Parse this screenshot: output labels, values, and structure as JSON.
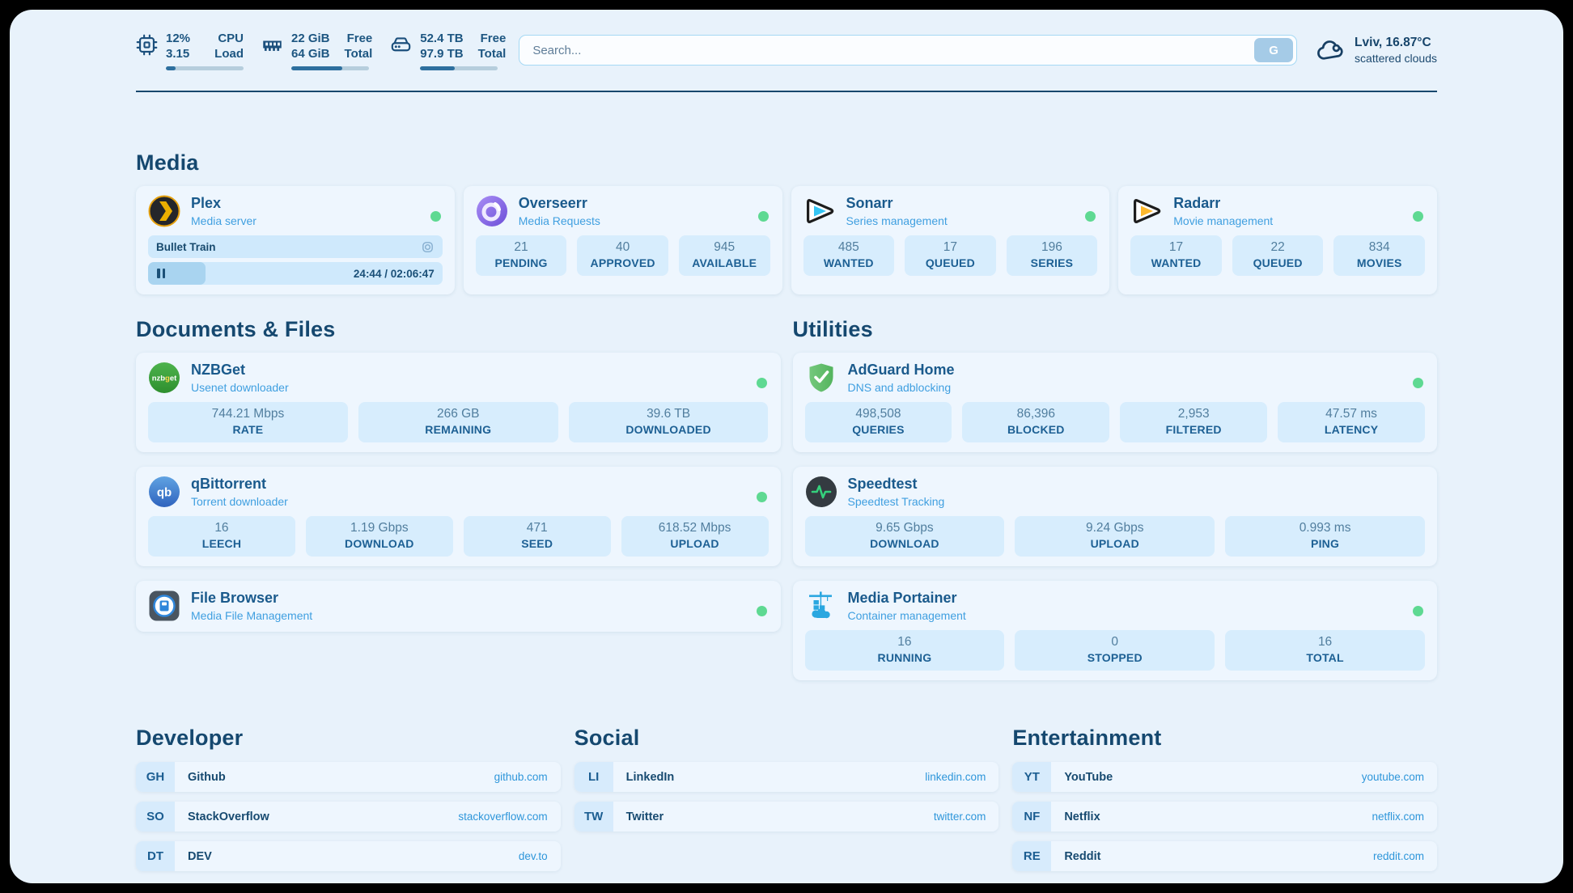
{
  "colors": {
    "status_online": "#5ed992",
    "accent": "#2e96da"
  },
  "header": {
    "hardware": [
      {
        "icon": "cpu-icon",
        "values": [
          "12%",
          "3.15"
        ],
        "labels": [
          "CPU",
          "Load"
        ],
        "progress_pct": 13
      },
      {
        "icon": "ram-icon",
        "values": [
          "22 GiB",
          "64 GiB"
        ],
        "labels": [
          "Free",
          "Total"
        ],
        "progress_pct": 66
      },
      {
        "icon": "disk-icon",
        "values": [
          "52.4 TB",
          "97.9 TB"
        ],
        "labels": [
          "Free",
          "Total"
        ],
        "progress_pct": 45
      }
    ],
    "search": {
      "placeholder": "Search...",
      "provider_label": "G"
    },
    "weather": {
      "icon": "cloud-icon",
      "location_temp": "Lviv, 16.87°C",
      "condition": "scattered clouds"
    }
  },
  "sections": {
    "media": {
      "title": "Media",
      "apps": [
        {
          "name": "Plex",
          "desc": "Media server",
          "icon": "plex-icon",
          "online": true,
          "now_playing": {
            "title": "Bullet Train",
            "time": "24:44 / 02:06:47",
            "progress_pct": 19.5
          }
        },
        {
          "name": "Overseerr",
          "desc": "Media Requests",
          "icon": "overseerr-icon",
          "online": true,
          "stats": [
            {
              "value": "21",
              "label": "PENDING"
            },
            {
              "value": "40",
              "label": "APPROVED"
            },
            {
              "value": "945",
              "label": "AVAILABLE"
            }
          ]
        },
        {
          "name": "Sonarr",
          "desc": "Series management",
          "icon": "sonarr-icon",
          "online": true,
          "stats": [
            {
              "value": "485",
              "label": "WANTED"
            },
            {
              "value": "17",
              "label": "QUEUED"
            },
            {
              "value": "196",
              "label": "SERIES"
            }
          ]
        },
        {
          "name": "Radarr",
          "desc": "Movie management",
          "icon": "radarr-icon",
          "online": true,
          "stats": [
            {
              "value": "17",
              "label": "WANTED"
            },
            {
              "value": "22",
              "label": "QUEUED"
            },
            {
              "value": "834",
              "label": "MOVIES"
            }
          ]
        }
      ]
    },
    "documents": {
      "title": "Documents & Files",
      "apps": [
        {
          "name": "NZBGet",
          "desc": "Usenet downloader",
          "icon": "nzbget-icon",
          "online": true,
          "stats": [
            {
              "value": "744.21 Mbps",
              "label": "RATE"
            },
            {
              "value": "266 GB",
              "label": "REMAINING"
            },
            {
              "value": "39.6 TB",
              "label": "DOWNLOADED"
            }
          ]
        },
        {
          "name": "qBittorrent",
          "desc": "Torrent downloader",
          "icon": "qbittorrent-icon",
          "online": true,
          "stats": [
            {
              "value": "16",
              "label": "LEECH"
            },
            {
              "value": "1.19 Gbps",
              "label": "DOWNLOAD"
            },
            {
              "value": "471",
              "label": "SEED"
            },
            {
              "value": "618.52 Mbps",
              "label": "UPLOAD"
            }
          ]
        },
        {
          "name": "File Browser",
          "desc": "Media File Management",
          "icon": "filebrowser-icon",
          "online": true
        }
      ]
    },
    "utilities": {
      "title": "Utilities",
      "apps": [
        {
          "name": "AdGuard Home",
          "desc": "DNS and adblocking",
          "icon": "adguard-icon",
          "online": true,
          "stats": [
            {
              "value": "498,508",
              "label": "QUERIES"
            },
            {
              "value": "86,396",
              "label": "BLOCKED"
            },
            {
              "value": "2,953",
              "label": "FILTERED"
            },
            {
              "value": "47.57 ms",
              "label": "LATENCY"
            }
          ]
        },
        {
          "name": "Speedtest",
          "desc": "Speedtest Tracking",
          "icon": "speedtest-icon",
          "online": false,
          "stats": [
            {
              "value": "9.65 Gbps",
              "label": "DOWNLOAD"
            },
            {
              "value": "9.24 Gbps",
              "label": "UPLOAD"
            },
            {
              "value": "0.993 ms",
              "label": "PING"
            }
          ]
        },
        {
          "name": "Media Portainer",
          "desc": "Container management",
          "icon": "portainer-icon",
          "online": true,
          "stats": [
            {
              "value": "16",
              "label": "RUNNING"
            },
            {
              "value": "0",
              "label": "STOPPED"
            },
            {
              "value": "16",
              "label": "TOTAL"
            }
          ]
        }
      ]
    },
    "developer": {
      "title": "Developer",
      "links": [
        {
          "abbr": "GH",
          "name": "Github",
          "url": "github.com"
        },
        {
          "abbr": "SO",
          "name": "StackOverflow",
          "url": "stackoverflow.com"
        },
        {
          "abbr": "DT",
          "name": "DEV",
          "url": "dev.to"
        }
      ]
    },
    "social": {
      "title": "Social",
      "links": [
        {
          "abbr": "LI",
          "name": "LinkedIn",
          "url": "linkedin.com"
        },
        {
          "abbr": "TW",
          "name": "Twitter",
          "url": "twitter.com"
        }
      ]
    },
    "entertainment": {
      "title": "Entertainment",
      "links": [
        {
          "abbr": "YT",
          "name": "YouTube",
          "url": "youtube.com"
        },
        {
          "abbr": "NF",
          "name": "Netflix",
          "url": "netflix.com"
        },
        {
          "abbr": "RE",
          "name": "Reddit",
          "url": "reddit.com"
        }
      ]
    }
  }
}
